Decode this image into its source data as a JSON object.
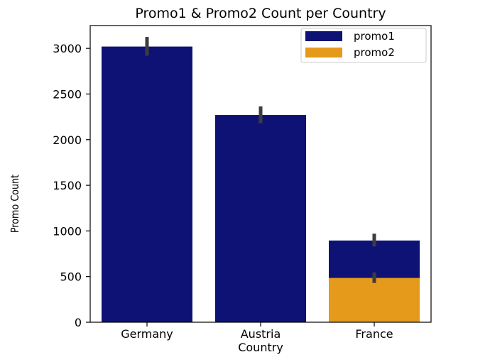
{
  "chart_data": {
    "type": "bar",
    "title": "Promo1 & Promo2 Count per Country",
    "xlabel": "Country",
    "ylabel": "Promo Count",
    "categories": [
      "Germany",
      "Austria",
      "France"
    ],
    "ylim": [
      0,
      3250
    ],
    "yticks": [
      0,
      500,
      1000,
      1500,
      2000,
      2500,
      3000
    ],
    "grid": false,
    "legend_position": "top-right",
    "series": [
      {
        "name": "promo1",
        "color": "#0f1275",
        "values": [
          3020,
          2270,
          895
        ],
        "error_low": [
          2920,
          2180,
          830
        ],
        "error_high": [
          3125,
          2365,
          970
        ]
      },
      {
        "name": "promo2",
        "color": "#e59a1c",
        "values": [
          0,
          0,
          485
        ],
        "error_low": [
          null,
          null,
          430
        ],
        "error_high": [
          null,
          null,
          545
        ]
      }
    ],
    "error_bar_color": "#3d3d3d"
  }
}
